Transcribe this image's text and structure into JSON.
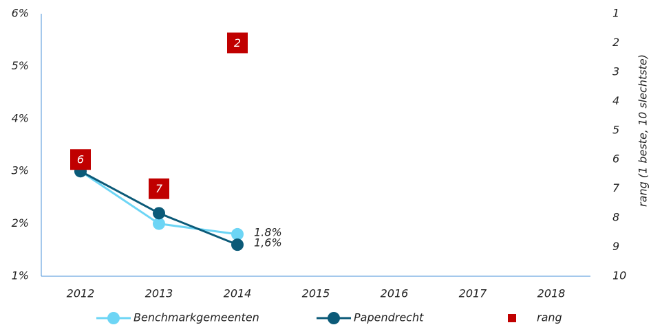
{
  "chart_data": {
    "type": "line",
    "categories": [
      "2012",
      "2013",
      "2014",
      "2015",
      "2016",
      "2017",
      "2018"
    ],
    "series": [
      {
        "name": "Benchmarkgemeenten",
        "color": "#6dd5f5",
        "values": [
          3,
          2,
          1.8,
          null,
          null,
          null,
          null
        ],
        "value_labels": [
          null,
          null,
          "1.8%",
          null,
          null,
          null,
          null
        ]
      },
      {
        "name": "Papendrecht",
        "color": "#0b5a78",
        "values": [
          3,
          2.2,
          1.6,
          null,
          null,
          null,
          null
        ],
        "value_labels": [
          null,
          null,
          "1,6%",
          null,
          null,
          null,
          null
        ]
      },
      {
        "name": "rang",
        "color": "#c00000",
        "axis": "y2",
        "marker": "square",
        "values": [
          6,
          7,
          2,
          null,
          null,
          null,
          null
        ]
      }
    ],
    "ylim": [
      1,
      6
    ],
    "yticks": [
      {
        "value": 1,
        "label": "1%"
      },
      {
        "value": 2,
        "label": "2%"
      },
      {
        "value": 3,
        "label": "3%"
      },
      {
        "value": 4,
        "label": "4%"
      },
      {
        "value": 5,
        "label": "5%"
      },
      {
        "value": 6,
        "label": "6%"
      }
    ],
    "y2lim": [
      1,
      10
    ],
    "y2_reversed": true,
    "y2ticks": [
      1,
      2,
      3,
      4,
      5,
      6,
      7,
      8,
      9,
      10
    ],
    "y2label": "rang (1 beste, 10 slechtste)",
    "grid": false,
    "legend": "bottom"
  }
}
